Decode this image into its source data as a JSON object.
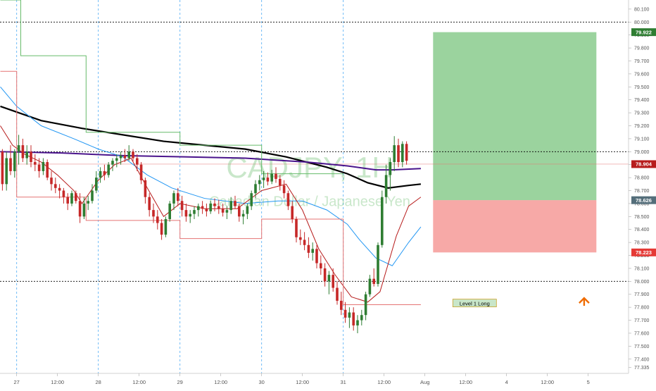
{
  "chart_data": {
    "type": "candlestick",
    "title": "CADJPY, 1H",
    "subtitle": "Canadian Dollar / Japanese Yen",
    "ylim": [
      77.29,
      80.17
    ],
    "y_ticks": [
      "80.100",
      "80.000",
      "79.900",
      "79.800",
      "79.700",
      "79.600",
      "79.500",
      "79.400",
      "79.300",
      "79.200",
      "79.100",
      "79.000",
      "78.900",
      "78.800",
      "78.700",
      "78.600",
      "78.500",
      "78.400",
      "78.300",
      "78.200",
      "78.100",
      "78.000",
      "77.900",
      "77.800",
      "77.700",
      "77.600",
      "77.500",
      "77.400",
      "77.335"
    ],
    "x_ticks": [
      {
        "label": "27",
        "slot": 4
      },
      {
        "label": "12:00",
        "slot": 14
      },
      {
        "label": "28",
        "slot": 24
      },
      {
        "label": "12:00",
        "slot": 34
      },
      {
        "label": "29",
        "slot": 44
      },
      {
        "label": "12:00",
        "slot": 54
      },
      {
        "label": "30",
        "slot": 64
      },
      {
        "label": "12:00",
        "slot": 74
      },
      {
        "label": "31",
        "slot": 84
      },
      {
        "label": "12:00",
        "slot": 94
      },
      {
        "label": "Aug",
        "slot": 104
      },
      {
        "label": "12:00",
        "slot": 114
      },
      {
        "label": "4",
        "slot": 124
      },
      {
        "label": "12:00",
        "slot": 134
      },
      {
        "label": "5",
        "slot": 144
      }
    ],
    "candles": [
      [
        79.0,
        79.02,
        78.7,
        78.75
      ],
      [
        78.75,
        79.0,
        78.7,
        78.95
      ],
      [
        78.95,
        79.05,
        78.82,
        78.85
      ],
      [
        78.85,
        79.02,
        78.8,
        79.0
      ],
      [
        79.0,
        79.13,
        78.9,
        79.05
      ],
      [
        79.05,
        79.1,
        78.92,
        78.95
      ],
      [
        78.95,
        79.05,
        78.9,
        79.0
      ],
      [
        79.0,
        79.05,
        78.88,
        78.92
      ],
      [
        78.92,
        78.98,
        78.85,
        78.9
      ],
      [
        78.9,
        78.95,
        78.8,
        78.85
      ],
      [
        78.85,
        78.95,
        78.82,
        78.92
      ],
      [
        78.92,
        78.94,
        78.78,
        78.8
      ],
      [
        78.8,
        78.85,
        78.7,
        78.75
      ],
      [
        78.75,
        78.8,
        78.68,
        78.72
      ],
      [
        78.72,
        78.75,
        78.64,
        78.7
      ],
      [
        78.7,
        78.72,
        78.6,
        78.65
      ],
      [
        78.65,
        78.68,
        78.55,
        78.6
      ],
      [
        78.6,
        78.7,
        78.58,
        78.68
      ],
      [
        78.68,
        78.7,
        78.6,
        78.62
      ],
      [
        78.62,
        78.68,
        78.45,
        78.5
      ],
      [
        78.5,
        78.65,
        78.48,
        78.6
      ],
      [
        78.6,
        78.66,
        78.55,
        78.62
      ],
      [
        78.62,
        78.75,
        78.6,
        78.7
      ],
      [
        78.7,
        78.85,
        78.68,
        78.8
      ],
      [
        78.8,
        78.88,
        78.76,
        78.85
      ],
      [
        78.85,
        78.9,
        78.78,
        78.82
      ],
      [
        78.82,
        78.92,
        78.8,
        78.9
      ],
      [
        78.9,
        78.95,
        78.85,
        78.93
      ],
      [
        78.93,
        78.98,
        78.88,
        78.95
      ],
      [
        78.95,
        79.0,
        78.9,
        78.97
      ],
      [
        78.97,
        79.02,
        78.92,
        78.95
      ],
      [
        78.95,
        79.05,
        78.93,
        79.0
      ],
      [
        79.0,
        79.02,
        78.92,
        78.95
      ],
      [
        78.95,
        78.98,
        78.85,
        78.9
      ],
      [
        78.9,
        78.92,
        78.75,
        78.78
      ],
      [
        78.78,
        78.8,
        78.6,
        78.65
      ],
      [
        78.65,
        78.68,
        78.5,
        78.55
      ],
      [
        78.55,
        78.6,
        78.45,
        78.5
      ],
      [
        78.5,
        78.55,
        78.4,
        78.45
      ],
      [
        78.45,
        78.48,
        78.32,
        78.36
      ],
      [
        78.36,
        78.5,
        78.34,
        78.48
      ],
      [
        78.48,
        78.62,
        78.46,
        78.6
      ],
      [
        78.6,
        78.7,
        78.55,
        78.68
      ],
      [
        78.68,
        78.72,
        78.58,
        78.62
      ],
      [
        78.62,
        78.66,
        78.5,
        78.55
      ],
      [
        78.55,
        78.6,
        78.46,
        78.5
      ],
      [
        78.5,
        78.55,
        78.45,
        78.52
      ],
      [
        78.52,
        78.58,
        78.48,
        78.55
      ],
      [
        78.55,
        78.6,
        78.5,
        78.58
      ],
      [
        78.58,
        78.62,
        78.52,
        78.56
      ],
      [
        78.56,
        78.6,
        78.5,
        78.54
      ],
      [
        78.54,
        78.62,
        78.52,
        78.6
      ],
      [
        78.6,
        78.64,
        78.54,
        78.58
      ],
      [
        78.58,
        78.63,
        78.52,
        78.56
      ],
      [
        78.56,
        78.6,
        78.5,
        78.53
      ],
      [
        78.53,
        78.58,
        78.48,
        78.55
      ],
      [
        78.55,
        78.65,
        78.52,
        78.62
      ],
      [
        78.62,
        78.66,
        78.56,
        78.58
      ],
      [
        78.58,
        78.6,
        78.46,
        78.5
      ],
      [
        78.5,
        78.55,
        78.44,
        78.52
      ],
      [
        78.52,
        78.6,
        78.48,
        78.58
      ],
      [
        78.58,
        78.7,
        78.55,
        78.68
      ],
      [
        78.68,
        78.78,
        78.64,
        78.75
      ],
      [
        78.75,
        78.82,
        78.7,
        78.78
      ],
      [
        78.78,
        78.85,
        78.72,
        78.8
      ],
      [
        78.8,
        78.84,
        78.74,
        78.77
      ],
      [
        78.77,
        78.86,
        78.75,
        78.83
      ],
      [
        78.83,
        78.88,
        78.76,
        78.79
      ],
      [
        78.79,
        78.82,
        78.7,
        78.74
      ],
      [
        78.74,
        78.78,
        78.64,
        78.68
      ],
      [
        78.68,
        78.7,
        78.55,
        78.58
      ],
      [
        78.58,
        78.62,
        78.45,
        78.48
      ],
      [
        78.48,
        78.5,
        78.3,
        78.34
      ],
      [
        78.34,
        78.4,
        78.28,
        78.32
      ],
      [
        78.32,
        78.38,
        78.24,
        78.28
      ],
      [
        78.28,
        78.34,
        78.18,
        78.22
      ],
      [
        78.22,
        78.3,
        78.16,
        78.25
      ],
      [
        78.25,
        78.28,
        78.1,
        78.14
      ],
      [
        78.14,
        78.2,
        78.05,
        78.1
      ],
      [
        78.1,
        78.14,
        77.96,
        78.0
      ],
      [
        78.0,
        78.08,
        77.9,
        78.05
      ],
      [
        78.05,
        78.1,
        77.92,
        77.95
      ],
      [
        77.95,
        78.0,
        77.82,
        77.85
      ],
      [
        77.85,
        77.92,
        77.74,
        77.78
      ],
      [
        77.78,
        77.84,
        77.68,
        77.72
      ],
      [
        77.72,
        77.8,
        77.64,
        77.76
      ],
      [
        77.76,
        77.8,
        77.62,
        77.66
      ],
      [
        77.66,
        77.74,
        77.6,
        77.7
      ],
      [
        77.7,
        77.78,
        77.66,
        77.74
      ],
      [
        77.74,
        77.92,
        77.7,
        77.9
      ],
      [
        77.9,
        78.05,
        77.88,
        78.02
      ],
      [
        78.02,
        78.1,
        77.96,
        77.98
      ],
      [
        77.98,
        78.3,
        77.96,
        78.28
      ],
      [
        78.28,
        78.7,
        78.26,
        78.65
      ],
      [
        78.65,
        78.9,
        78.6,
        78.82
      ],
      [
        78.82,
        78.95,
        78.7,
        78.92
      ],
      [
        78.92,
        79.12,
        78.85,
        79.05
      ],
      [
        79.05,
        79.1,
        78.88,
        78.92
      ],
      [
        78.92,
        79.08,
        78.88,
        79.06
      ],
      [
        79.06,
        79.08,
        78.9,
        78.93
      ]
    ],
    "overlays": {
      "ma_black": {
        "color": "#000000",
        "points": [
          [
            0,
            79.35
          ],
          [
            10,
            79.24
          ],
          [
            20,
            79.18
          ],
          [
            30,
            79.13
          ],
          [
            40,
            79.08
          ],
          [
            50,
            79.05
          ],
          [
            60,
            79.02
          ],
          [
            70,
            78.96
          ],
          [
            80,
            78.88
          ],
          [
            85,
            78.83
          ],
          [
            90,
            78.76
          ],
          [
            95,
            78.72
          ],
          [
            100,
            78.74
          ],
          [
            103,
            78.75
          ]
        ]
      },
      "ma_purple": {
        "color": "#4a148c",
        "points": [
          [
            0,
            79.0
          ],
          [
            15,
            78.99
          ],
          [
            30,
            78.97
          ],
          [
            45,
            78.96
          ],
          [
            60,
            78.95
          ],
          [
            75,
            78.92
          ],
          [
            85,
            78.89
          ],
          [
            92,
            78.86
          ],
          [
            96,
            78.86
          ],
          [
            103,
            78.87
          ]
        ]
      },
      "ema_blue": {
        "color": "#2196f3",
        "points": [
          [
            0,
            79.5
          ],
          [
            4,
            79.35
          ],
          [
            10,
            79.2
          ],
          [
            18,
            79.1
          ],
          [
            24,
            79.02
          ],
          [
            30,
            78.96
          ],
          [
            36,
            78.82
          ],
          [
            42,
            78.72
          ],
          [
            50,
            78.64
          ],
          [
            60,
            78.6
          ],
          [
            68,
            78.62
          ],
          [
            74,
            78.62
          ],
          [
            80,
            78.55
          ],
          [
            85,
            78.44
          ],
          [
            88,
            78.32
          ],
          [
            92,
            78.18
          ],
          [
            96,
            78.12
          ],
          [
            100,
            78.3
          ],
          [
            103,
            78.42
          ]
        ]
      },
      "ema_red": {
        "color": "#b71c1c",
        "points": [
          [
            0,
            79.2
          ],
          [
            3,
            79.05
          ],
          [
            6,
            78.98
          ],
          [
            10,
            78.92
          ],
          [
            14,
            78.82
          ],
          [
            18,
            78.7
          ],
          [
            20,
            78.6
          ],
          [
            24,
            78.78
          ],
          [
            28,
            78.9
          ],
          [
            32,
            78.95
          ],
          [
            36,
            78.72
          ],
          [
            40,
            78.5
          ],
          [
            44,
            78.6
          ],
          [
            50,
            78.56
          ],
          [
            58,
            78.56
          ],
          [
            64,
            78.7
          ],
          [
            70,
            78.75
          ],
          [
            74,
            78.55
          ],
          [
            78,
            78.25
          ],
          [
            82,
            78.05
          ],
          [
            86,
            77.88
          ],
          [
            90,
            77.84
          ],
          [
            93,
            77.92
          ],
          [
            97,
            78.35
          ],
          [
            100,
            78.58
          ],
          [
            103,
            78.65
          ]
        ]
      },
      "step_green": {
        "color": "#66bb6a",
        "points": [
          [
            0,
            80.17
          ],
          [
            5,
            80.17
          ],
          [
            5,
            79.74
          ],
          [
            21,
            79.74
          ],
          [
            21,
            79.15
          ],
          [
            44,
            79.15
          ],
          [
            44,
            79.05
          ],
          [
            64,
            79.05
          ],
          [
            64,
            78.83
          ],
          [
            84,
            78.83
          ]
        ]
      },
      "step_red": {
        "color": "#e57373",
        "points": [
          [
            0,
            79.62
          ],
          [
            4,
            79.62
          ],
          [
            4,
            78.65
          ],
          [
            21,
            78.65
          ],
          [
            21,
            78.47
          ],
          [
            44,
            78.47
          ],
          [
            44,
            78.33
          ],
          [
            64,
            78.33
          ],
          [
            64,
            78.48
          ],
          [
            84,
            78.48
          ],
          [
            84,
            77.82
          ],
          [
            103,
            77.82
          ]
        ]
      }
    },
    "hlines": [
      80.0,
      79.0,
      78.0
    ],
    "target_zone": {
      "top": 79.922,
      "mid": 78.626,
      "bottom": 78.223,
      "slot_start": 106,
      "slot_end": 146
    },
    "price_labels": [
      {
        "value": 79.922,
        "text": "79.922",
        "color": "#2e7d32"
      },
      {
        "value": 78.904,
        "text": "78.904",
        "color": "#b71c1c"
      },
      {
        "value": 78.626,
        "text": "78.626",
        "color": "#546e7a"
      },
      {
        "value": 78.223,
        "text": "78.223",
        "color": "#e53935"
      }
    ],
    "current_price": 78.904,
    "annotation": {
      "text": "Level 1 Long",
      "slot": 116,
      "value": 77.83
    },
    "arrow": {
      "slot": 143,
      "value": 77.86,
      "color": "#ef6c00"
    }
  }
}
